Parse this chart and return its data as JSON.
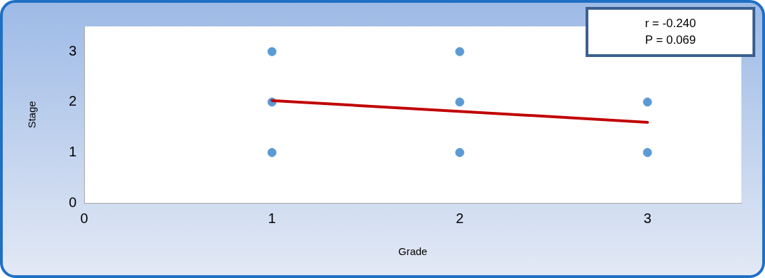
{
  "chart_data": {
    "type": "scatter",
    "xlabel": "Grade",
    "ylabel": "Stage",
    "annotations": [
      "r = -0.240",
      "P = 0.069"
    ],
    "xlim": [
      0,
      3.5
    ],
    "xticks": [
      0,
      1,
      2,
      3
    ],
    "ylim": [
      0,
      3.5
    ],
    "yticks": [
      0,
      1,
      2,
      3
    ],
    "grid": false,
    "legend": false,
    "marker": "circle",
    "series": [
      {
        "color": "#5b9bd5",
        "x": [
          1,
          1,
          1,
          2,
          2,
          2,
          3,
          3
        ],
        "values": [
          1,
          2,
          3,
          1,
          2,
          3,
          1,
          2
        ]
      },
      {
        "type": "line",
        "color": "#c00000",
        "marker": "none",
        "line_style": "solid",
        "x": [
          1,
          3
        ],
        "values": [
          2.03,
          1.6
        ]
      }
    ]
  }
}
